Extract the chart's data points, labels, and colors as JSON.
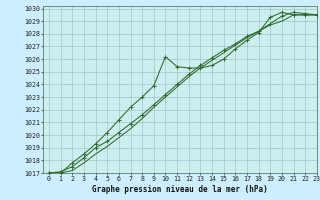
{
  "background_color": "#cceeff",
  "plot_bg_color": "#cceeee",
  "grid_color": "#99bbbb",
  "line_color": "#2d6a2d",
  "title": "Graphe pression niveau de la mer (hPa)",
  "xlim": [
    -0.5,
    23
  ],
  "ylim": [
    1017,
    1030.2
  ],
  "xticks": [
    0,
    1,
    2,
    3,
    4,
    5,
    6,
    7,
    8,
    9,
    10,
    11,
    12,
    13,
    14,
    15,
    16,
    17,
    18,
    19,
    20,
    21,
    22,
    23
  ],
  "yticks": [
    1017,
    1018,
    1019,
    1020,
    1021,
    1022,
    1023,
    1024,
    1025,
    1026,
    1027,
    1028,
    1029,
    1030
  ],
  "series1_x": [
    0,
    1,
    2,
    3,
    4,
    5,
    6,
    7,
    8,
    9,
    10,
    11,
    12,
    13,
    14,
    15,
    16,
    17,
    18,
    19,
    20,
    21,
    22,
    23
  ],
  "series1_y": [
    1017.0,
    1017.1,
    1017.5,
    1018.2,
    1019.0,
    1019.5,
    1020.2,
    1020.9,
    1021.6,
    1022.4,
    1023.2,
    1024.0,
    1024.8,
    1025.5,
    1026.1,
    1026.7,
    1027.2,
    1027.8,
    1028.2,
    1028.8,
    1029.4,
    1029.7,
    1029.6,
    1029.5
  ],
  "series2_x": [
    0,
    1,
    2,
    3,
    4,
    5,
    6,
    7,
    8,
    9,
    10,
    11,
    12,
    13,
    14,
    15,
    16,
    17,
    18,
    19,
    20,
    21,
    22,
    23
  ],
  "series2_y": [
    1017.0,
    1017.0,
    1017.8,
    1018.5,
    1019.3,
    1020.2,
    1021.2,
    1022.2,
    1023.0,
    1023.9,
    1026.2,
    1025.4,
    1025.3,
    1025.3,
    1025.5,
    1026.0,
    1026.8,
    1027.5,
    1028.1,
    1029.3,
    1029.7,
    1029.5,
    1029.5,
    1029.5
  ],
  "series3_x": [
    0,
    1,
    2,
    3,
    4,
    5,
    6,
    7,
    8,
    9,
    10,
    11,
    12,
    13,
    14,
    15,
    16,
    17,
    18,
    19,
    20,
    21,
    22,
    23
  ],
  "series3_y": [
    1017.0,
    1017.0,
    1017.2,
    1017.8,
    1018.5,
    1019.1,
    1019.8,
    1020.5,
    1021.3,
    1022.2,
    1023.0,
    1023.8,
    1024.6,
    1025.3,
    1025.9,
    1026.5,
    1027.1,
    1027.7,
    1028.2,
    1028.7,
    1029.0,
    1029.5,
    1029.5,
    1029.5
  ],
  "tick_fontsize": 4.8,
  "title_fontsize": 5.5,
  "linewidth": 0.75,
  "markersize": 2.8
}
